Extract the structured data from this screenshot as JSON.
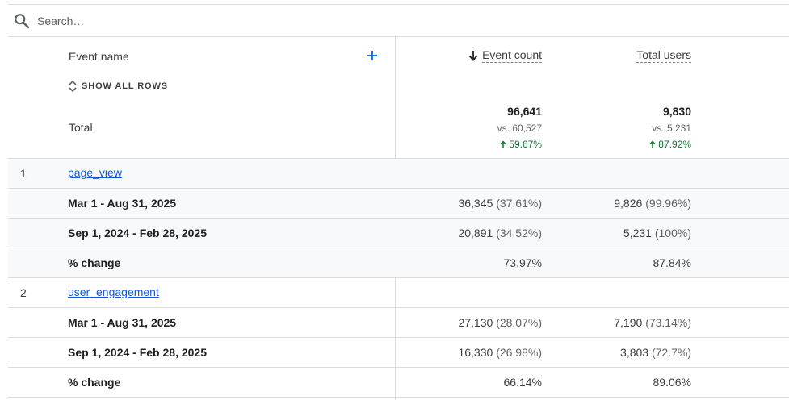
{
  "search": {
    "placeholder": "Search…"
  },
  "table": {
    "dimension_header": "Event name",
    "show_all_rows": "SHOW ALL ROWS",
    "total_label": "Total",
    "metrics": [
      {
        "label": "Event count",
        "sorted": "descending",
        "total": "96,641",
        "total_vs": "vs. 60,527",
        "total_change": "59.67%"
      },
      {
        "label": "Total users",
        "total": "9,830",
        "total_vs": "vs. 5,231",
        "total_change": "87.92%"
      }
    ],
    "groups": [
      {
        "index": "1",
        "name": "page_view",
        "rows": [
          {
            "label": "Mar 1 - Aug 31, 2025",
            "c1_value": "36,345",
            "c1_pct": "(37.61%)",
            "c2_value": "9,826",
            "c2_pct": "(99.96%)"
          },
          {
            "label": "Sep 1, 2024 - Feb 28, 2025",
            "c1_value": "20,891",
            "c1_pct": "(34.52%)",
            "c2_value": "5,231",
            "c2_pct": "(100%)"
          },
          {
            "label": "% change",
            "c1_value": "73.97%",
            "c1_pct": "",
            "c2_value": "87.84%",
            "c2_pct": ""
          }
        ]
      },
      {
        "index": "2",
        "name": "user_engagement",
        "rows": [
          {
            "label": "Mar 1 - Aug 31, 2025",
            "c1_value": "27,130",
            "c1_pct": "(28.07%)",
            "c2_value": "7,190",
            "c2_pct": "(73.14%)"
          },
          {
            "label": "Sep 1, 2024 - Feb 28, 2025",
            "c1_value": "16,330",
            "c1_pct": "(26.98%)",
            "c2_value": "3,803",
            "c2_pct": "(72.7%)"
          },
          {
            "label": "% change",
            "c1_value": "66.14%",
            "c1_pct": "",
            "c2_value": "89.06%",
            "c2_pct": ""
          }
        ]
      }
    ]
  },
  "colors": {
    "link": "#1558d6",
    "positive": "#137333",
    "border": "#dadce0",
    "shade": "#f8f9fa"
  },
  "icons": {
    "search": "search-icon",
    "add": "plus-icon",
    "expand": "unfold-icon",
    "sort": "arrow-down-icon",
    "up": "arrow-up-icon"
  }
}
